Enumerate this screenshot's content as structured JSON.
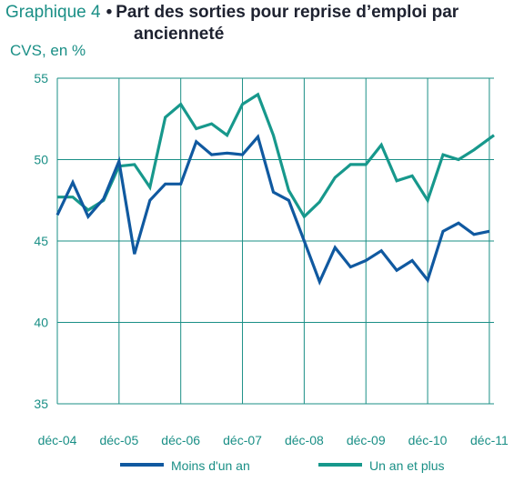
{
  "header": {
    "prefix": "Graphique 4",
    "bullet": "•",
    "title_line1": "Part des sorties pour reprise d’emploi par",
    "title_line2": "ancienneté",
    "subtitle": "CVS, en %"
  },
  "colors": {
    "axis": "#1a8f86",
    "grid": "#1a8f86",
    "series_short": "#1059a0",
    "series_long": "#17988c"
  },
  "chart_data": {
    "type": "line",
    "title": "Part des sorties pour reprise d’emploi par ancienneté",
    "ylabel": "CVS, en %",
    "ylim": [
      35,
      55
    ],
    "yticks": [
      35,
      40,
      45,
      50,
      55
    ],
    "xlim": [
      0,
      28.3
    ],
    "x_tick_labels": [
      "déc-04",
      "déc-05",
      "déc-06",
      "déc-07",
      "déc-08",
      "déc-09",
      "déc-10",
      "déc-11"
    ],
    "x_tick_positions": [
      0,
      4,
      8,
      12,
      16,
      20,
      24,
      28
    ],
    "grid": true,
    "legend_position": "bottom",
    "series": [
      {
        "name": "Moins d'un an",
        "color": "#1059a0",
        "values": [
          46.6,
          48.6,
          46.5,
          47.6,
          49.9,
          44.2,
          47.5,
          48.5,
          48.5,
          51.1,
          50.3,
          50.4,
          50.3,
          51.4,
          48.0,
          47.5,
          45.0,
          42.5,
          44.6,
          43.4,
          43.8,
          44.4,
          43.2,
          43.8,
          42.6,
          45.6,
          46.1,
          45.4,
          45.6
        ],
        "x": [
          0,
          1,
          2,
          3,
          4,
          5,
          6,
          7,
          8,
          9,
          10,
          11,
          12,
          13,
          14,
          15,
          16,
          17,
          18,
          19,
          20,
          21,
          22,
          23,
          24,
          25,
          26,
          27,
          28
        ]
      },
      {
        "name": "Un an et plus",
        "color": "#17988c",
        "values": [
          47.7,
          47.7,
          46.9,
          47.5,
          49.6,
          49.7,
          48.3,
          52.6,
          53.4,
          51.9,
          52.2,
          51.5,
          53.4,
          54.0,
          51.5,
          48.1,
          46.5,
          47.4,
          48.9,
          49.7,
          49.7,
          50.9,
          48.7,
          49.0,
          47.5,
          50.3,
          50.0,
          50.6,
          51.5
        ],
        "x": [
          0,
          1,
          2,
          3,
          4,
          5,
          6,
          7,
          8,
          9,
          10,
          11,
          12,
          13,
          14,
          15,
          16,
          17,
          18,
          19,
          20,
          21,
          22,
          23,
          24,
          25,
          26,
          27,
          28.3
        ]
      }
    ]
  }
}
